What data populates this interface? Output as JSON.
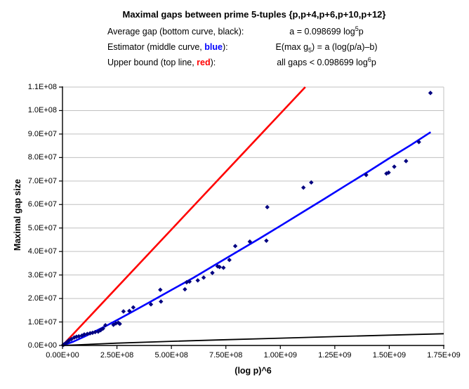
{
  "page": {
    "background": "#ffffff"
  },
  "header": {
    "title": "Maximal gaps between prime 5-tuples {p,p+4,p+6,p+10,p+12}",
    "rows": [
      {
        "label_pre": "Average gap (bottom curve, ",
        "accent": "black",
        "accent_color": "#000000",
        "accent_bold": false,
        "label_post": "):",
        "f1": "a = 0.098699 log",
        "script": "5",
        "script_type": "sup",
        "f2": "p"
      },
      {
        "label_pre": "Estimator (middle curve, ",
        "accent": "blue",
        "accent_color": "#0000ff",
        "accent_bold": true,
        "label_post": "):",
        "f1": "E(max g",
        "script": "5",
        "script_type": "sub",
        "f2": ") = a (log(p/a)–b)"
      },
      {
        "label_pre": "Upper bound (top line, ",
        "accent": "red",
        "accent_color": "#ff0000",
        "accent_bold": true,
        "label_post": "):",
        "f1": "all gaps < 0.098699 log",
        "script": "6",
        "script_type": "sup",
        "f2": "p"
      }
    ]
  },
  "chart_data": {
    "type": "scatter",
    "title": "Maximal gaps between prime 5-tuples {p,p+4,p+6,p+10,p+12}",
    "xlabel": "(log p)^6",
    "ylabel": "Maximal gap size",
    "xlim": [
      0,
      1750000000.0
    ],
    "ylim": [
      0,
      110000000.0
    ],
    "grid": "horizontal",
    "gridline_color": "#c0c0c0",
    "axis_color": "#000000",
    "x_tick_values": [
      0,
      250000000.0,
      500000000.0,
      750000000.0,
      1000000000.0,
      1250000000.0,
      1500000000.0,
      1750000000.0
    ],
    "x_tick_labels": [
      "0.00E+00",
      "2.50E+08",
      "5.00E+08",
      "7.50E+08",
      "1.00E+09",
      "1.25E+09",
      "1.50E+09",
      "1.75E+09"
    ],
    "y_tick_values": [
      0,
      10000000.0,
      20000000.0,
      30000000.0,
      40000000.0,
      50000000.0,
      60000000.0,
      70000000.0,
      80000000.0,
      90000000.0,
      100000000.0,
      110000000.0
    ],
    "y_tick_labels": [
      "0.0E+00",
      "1.0E+07",
      "2.0E+07",
      "3.0E+07",
      "4.0E+07",
      "5.0E+07",
      "6.0E+07",
      "7.0E+07",
      "8.0E+07",
      "9.0E+07",
      "1.0E+08",
      "1.1E+08"
    ],
    "series": [
      {
        "key": "average-gap-curve",
        "name": "Average gap: a = 0.098699 log^5 p",
        "type": "line",
        "color": "#000000",
        "width": 1.8,
        "x": [
          0,
          250000000.0,
          500000000.0,
          750000000.0,
          1000000000.0,
          1250000000.0,
          1500000000.0,
          1750000000.0
        ],
        "y": [
          0,
          990000.0,
          1760000.0,
          2460000.0,
          3120000.0,
          3780000.0,
          4380000.0,
          4980000.0
        ]
      },
      {
        "key": "upper-bound-line",
        "name": "Upper bound: all gaps < 0.098699 log^6 p",
        "type": "line",
        "color": "#ff0000",
        "width": 2.6,
        "x": [
          0,
          1114500000.0
        ],
        "y": [
          0,
          110000000.0
        ]
      },
      {
        "key": "estimator-curve",
        "name": "Estimator: E(max g5) = a (log(p/a)-b)",
        "type": "line",
        "color": "#0000ff",
        "width": 2.6,
        "x": [
          0,
          50000000.0,
          100000000.0,
          150000000.0,
          200000000.0,
          250000000.0,
          300000000.0,
          400000000.0,
          500000000.0,
          600000000.0,
          700000000.0,
          800000000.0,
          900000000.0,
          1000000000.0,
          1100000000.0,
          1200000000.0,
          1300000000.0,
          1400000000.0,
          1500000000.0,
          1600000000.0,
          1690000000.0
        ],
        "y": [
          0,
          1640000.0,
          3730000.0,
          6000000.0,
          8350000.0,
          10800000.0,
          13300000.0,
          18400000.0,
          23600000.0,
          28800000.0,
          34300000.0,
          39800000.0,
          45300000.0,
          50900000.0,
          56600000.0,
          62300000.0,
          68100000.0,
          73800000.0,
          79700000.0,
          85400000.0,
          90800000.0
        ]
      },
      {
        "key": "max-gap-points",
        "name": "Observed maximal gaps",
        "type": "scatter",
        "marker": "diamond",
        "color": "#000080",
        "size": 3.2,
        "x": [
          3000000.0,
          8000000.0,
          15000000.0,
          22000000.0,
          30000000.0,
          41000000.0,
          54000000.0,
          64000000.0,
          75000000.0,
          89000000.0,
          100000000.0,
          114000000.0,
          127000000.0,
          138000000.0,
          150000000.0,
          164000000.0,
          175000000.0,
          186000000.0,
          197000000.0,
          234000000.0,
          245000000.0,
          256000000.0,
          263000000.0,
          280000000.0,
          307000000.0,
          325000000.0,
          406000000.0,
          449000000.0,
          452000000.0,
          562000000.0,
          570000000.0,
          583000000.0,
          621000000.0,
          648000000.0,
          688000000.0,
          712000000.0,
          721000000.0,
          739000000.0,
          766000000.0,
          793000000.0,
          860000000.0,
          936000000.0,
          940000000.0,
          1106000000.0,
          1142000000.0,
          1394000000.0,
          1487000000.0,
          1497000000.0,
          1523000000.0,
          1577000000.0,
          1636000000.0,
          1689000000.0
        ],
        "y": [
          200000.0,
          500000.0,
          1000000.0,
          1500000.0,
          2200000.0,
          2700000.0,
          3400000.0,
          3700000.0,
          3900000.0,
          4200000.0,
          4700000.0,
          4900000.0,
          5200000.0,
          5400000.0,
          5700000.0,
          5900000.0,
          6500000.0,
          7200000.0,
          8600000.0,
          8800000.0,
          9400000.0,
          9700000.0,
          9200000.0,
          14500000.0,
          14700000.0,
          16200000.0,
          17500000.0,
          23700000.0,
          18700000.0,
          23900000.0,
          26900000.0,
          27200000.0,
          27700000.0,
          28900000.0,
          30900000.0,
          33700000.0,
          33400000.0,
          33100000.0,
          36400000.0,
          42300000.0,
          44200000.0,
          44600000.0,
          58900000.0,
          67200000.0,
          69400000.0,
          72600000.0,
          73200000.0,
          73600000.0,
          76100000.0,
          78500000.0,
          86600000.0,
          107500000.0
        ]
      }
    ]
  }
}
